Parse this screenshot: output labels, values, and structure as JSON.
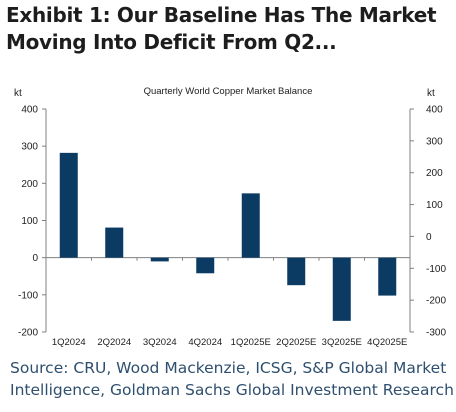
{
  "exhibit": {
    "headline": "Exhibit 1: Our Baseline Has The Market Moving Into Deficit From Q2..."
  },
  "source_note": "Source: CRU, Wood Mackenzie, ICSG, S&P Global Market Intelligence, Goldman Sachs Global Investment Research",
  "colors": {
    "bar": "#0b3a63",
    "axis": "#808080",
    "text": "#1d1d1d",
    "source": "#2f4f6f"
  },
  "chart_data": {
    "type": "bar",
    "title": "Quarterly World Copper Market Balance",
    "ylabel_left": "kt",
    "ylabel_right": "kt",
    "categories": [
      "1Q2024",
      "2Q2024",
      "3Q2024",
      "4Q2024",
      "1Q2025E",
      "2Q2025E",
      "3Q2025E",
      "4Q2025E"
    ],
    "series": [
      {
        "values": [
          282,
          81,
          -10,
          -42,
          173,
          -74,
          -170,
          -102
        ]
      }
    ],
    "ylim_left": [
      -200,
      400
    ],
    "yticks_left": [
      -200,
      -100,
      0,
      100,
      200,
      300,
      400
    ],
    "ylim_right": [
      -300,
      400
    ],
    "yticks_right": [
      -300,
      -200,
      -100,
      0,
      100,
      200,
      300,
      400
    ],
    "grid": false,
    "legend": "none"
  }
}
